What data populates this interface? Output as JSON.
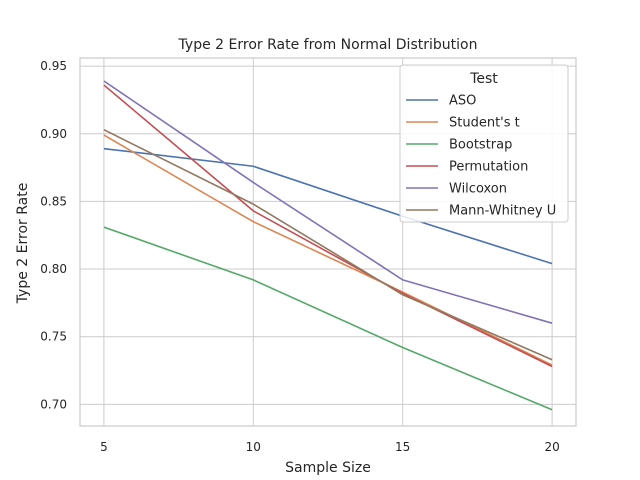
{
  "chart_data": {
    "type": "line",
    "title": "Type 2 Error Rate from Normal Distribution",
    "xlabel": "Sample Size",
    "ylabel": "Type 2 Error Rate",
    "x": [
      5,
      10,
      15,
      20
    ],
    "xticks": [
      "5",
      "10",
      "15",
      "20"
    ],
    "yticks": [
      "0.70",
      "0.75",
      "0.80",
      "0.85",
      "0.90",
      "0.95"
    ],
    "xlim": [
      4.2,
      20.8
    ],
    "ylim": [
      0.684,
      0.956
    ],
    "grid": true,
    "legend": {
      "title": "Test",
      "placement": "top-right"
    },
    "series": [
      {
        "name": "ASO",
        "color": "#4c72b0",
        "values": [
          0.889,
          0.876,
          0.839,
          0.804
        ]
      },
      {
        "name": "Student's t",
        "color": "#dd8452",
        "values": [
          0.899,
          0.835,
          0.783,
          0.729
        ]
      },
      {
        "name": "Bootstrap",
        "color": "#55a868",
        "values": [
          0.831,
          0.792,
          0.742,
          0.696
        ]
      },
      {
        "name": "Permutation",
        "color": "#c44e52",
        "values": [
          0.936,
          0.843,
          0.782,
          0.728
        ]
      },
      {
        "name": "Wilcoxon",
        "color": "#8172b3",
        "values": [
          0.939,
          0.864,
          0.792,
          0.76
        ]
      },
      {
        "name": "Mann-Whitney U",
        "color": "#937860",
        "values": [
          0.903,
          0.848,
          0.781,
          0.733
        ]
      }
    ]
  }
}
